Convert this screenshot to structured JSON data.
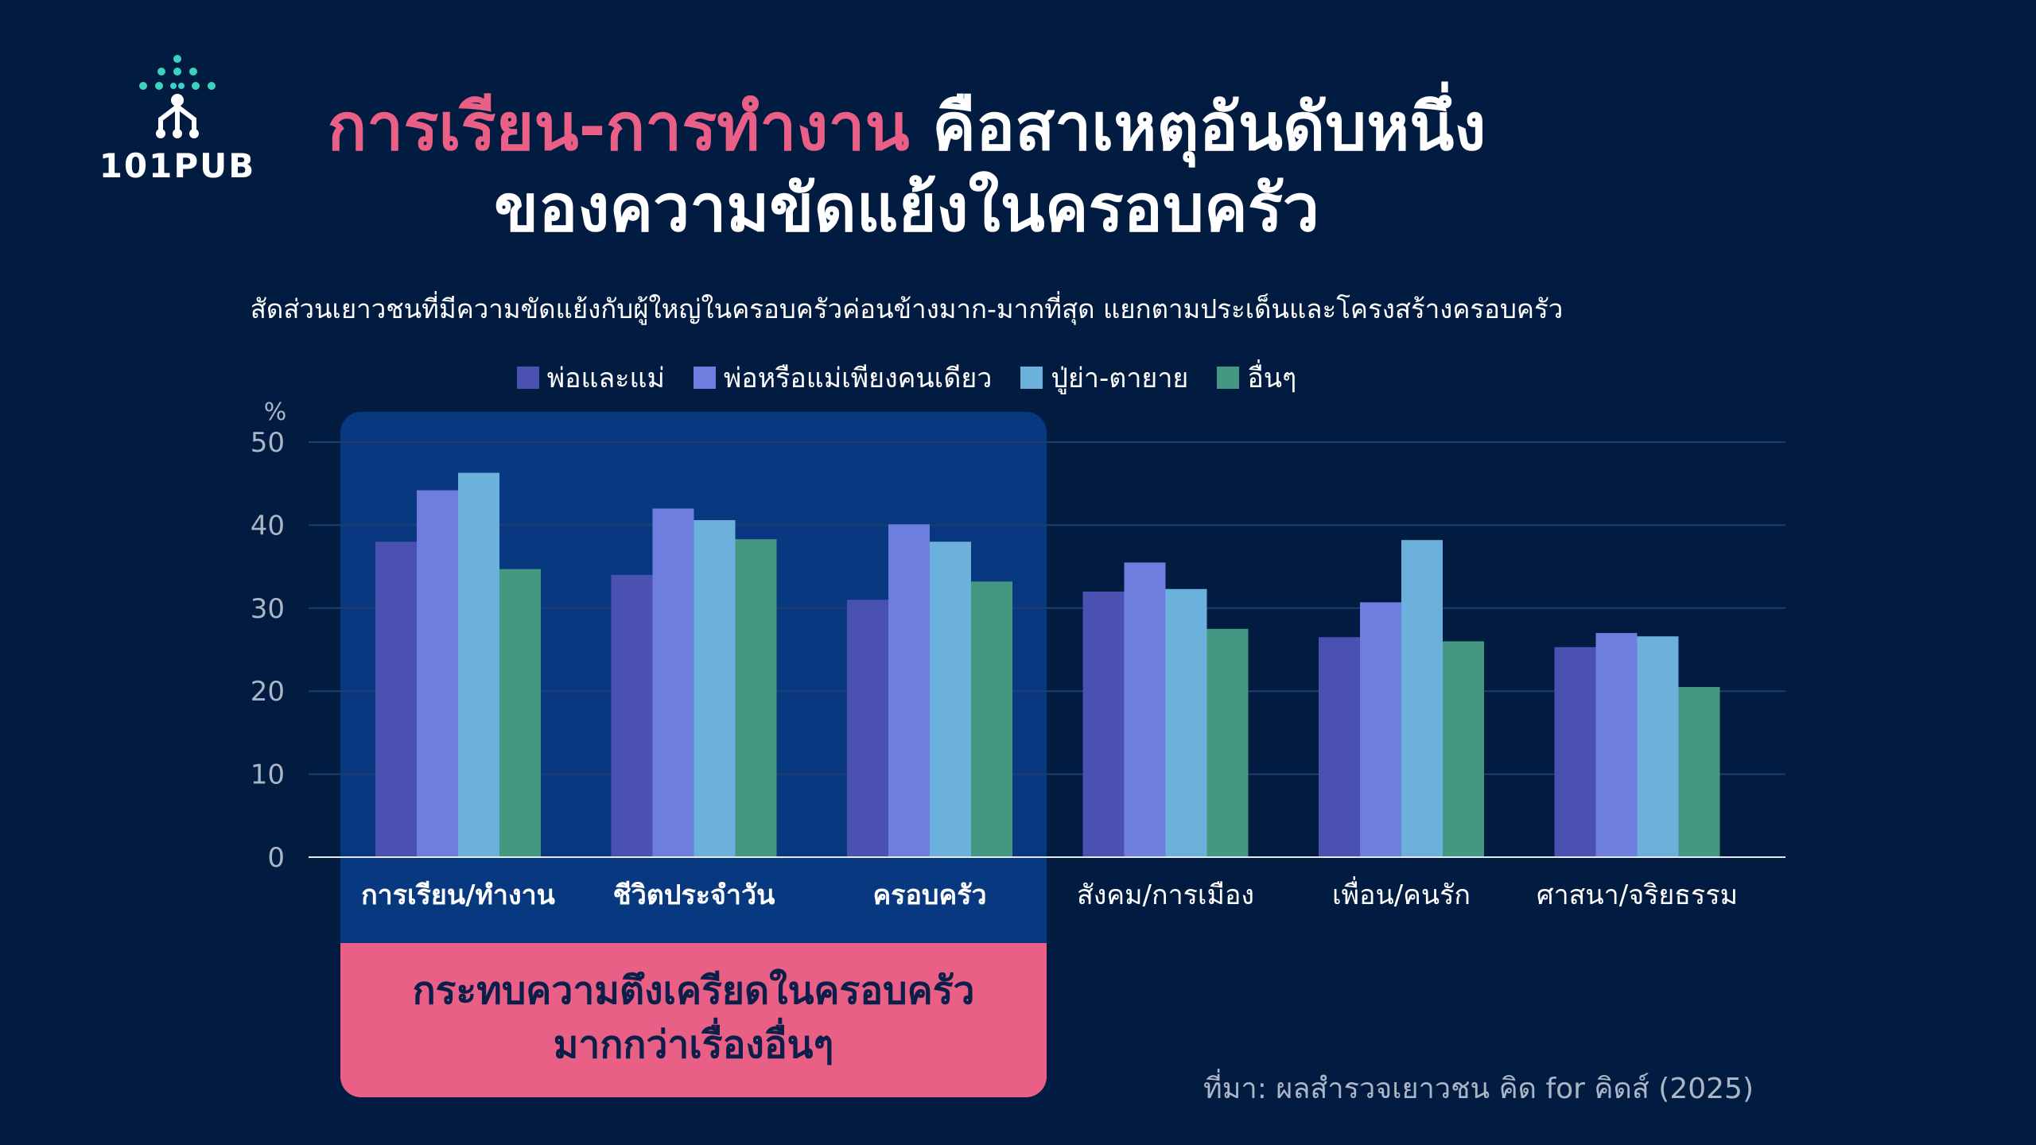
{
  "logo": {
    "text": "101PUB"
  },
  "title": {
    "line1_highlight": "การเรียน-การทำงาน",
    "line1_rest": " คือสาเหตุอันดับหนึ่ง",
    "line2": "ของความขัดแย้งในครอบครัว"
  },
  "subtitle": "สัดส่วนเยาวชนที่มีความขัดแย้งกับผู้ใหญ่ในครอบครัวค่อนข้างมาก-มากที่สุด แยกตามประเด็นและโครงสร้างครอบครัว",
  "callout": {
    "line1": "กระทบความตึงเครียดในครอบครัว",
    "line2": "มากกว่าเรื่องอื่นๆ"
  },
  "source": "ที่มา: ผลสำรวจเยาวชน คิด for คิดส์ (2025)",
  "colors": {
    "background": "#011c40",
    "highlight_panel": "#08387f",
    "callout": "#ea5f85",
    "title_highlight": "#ea5f85"
  },
  "chart_data": {
    "type": "bar",
    "ylabel": "%",
    "ylim": [
      0,
      50
    ],
    "yticks": [
      0,
      10,
      20,
      30,
      40,
      50
    ],
    "grid": true,
    "legend_position": "top-center",
    "categories": [
      "การเรียน/ทำงาน",
      "ชีวิตประจำวัน",
      "ครอบครัว",
      "สังคม/การเมือง",
      "เพื่อน/คนรัก",
      "ศาสนา/จริยธรรม"
    ],
    "highlighted_categories": 3,
    "series": [
      {
        "name": "พ่อและแม่",
        "color": "#4a51b0",
        "values": [
          38,
          34,
          31,
          32,
          26.5,
          25.3
        ]
      },
      {
        "name": "พ่อหรือแม่เพียงคนเดียว",
        "color": "#6e7edf",
        "values": [
          44.2,
          42,
          40.1,
          35.5,
          30.7,
          27
        ]
      },
      {
        "name": "ปู่ย่า-ตายาย",
        "color": "#6cb1dc",
        "values": [
          46.3,
          40.6,
          38,
          32.3,
          38.2,
          26.6
        ]
      },
      {
        "name": "อื่นๆ",
        "color": "#449882",
        "values": [
          34.7,
          38.3,
          33.2,
          27.5,
          26,
          20.5
        ]
      }
    ]
  }
}
